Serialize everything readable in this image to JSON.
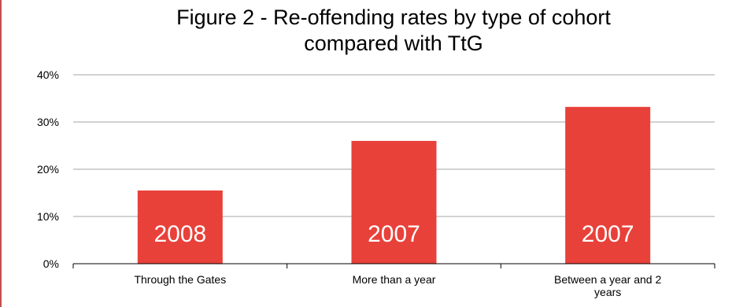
{
  "chart_data": {
    "type": "bar",
    "title_lines": [
      "Figure 2 - Re-offending rates by type of cohort",
      "compared with TtG"
    ],
    "categories": [
      [
        "Through the Gates"
      ],
      [
        "More than a year"
      ],
      [
        "Between a year and 2",
        "years"
      ]
    ],
    "values": [
      15.5,
      26.0,
      33.2
    ],
    "bar_labels": [
      "2008",
      "2007",
      "2007"
    ],
    "y_ticks": [
      "0%",
      "10%",
      "20%",
      "30%",
      "40%"
    ],
    "ylim": [
      0,
      40
    ],
    "xlabel": "",
    "ylabel": "",
    "grid": true,
    "legend": "none",
    "colors": {
      "bar": "#e8413a",
      "grid": "#a6a6a6",
      "axis": "#000000",
      "frame": "#c0504d"
    }
  }
}
